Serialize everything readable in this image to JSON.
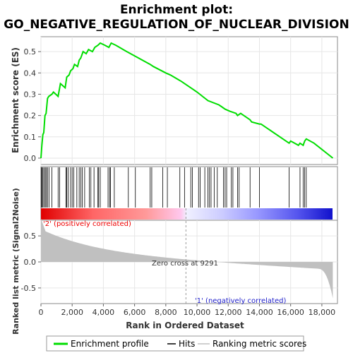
{
  "chart_data": {
    "type": "line",
    "title_line1": "Enrichment plot:",
    "title_line2": "GO_NEGATIVE_REGULATION_OF_NUCLEAR_DIVISION",
    "es_ylabel": "Enrichment score (ES)",
    "metric_ylabel": "Ranked list metric (Signal2Noise)",
    "xlabel": "Rank in Ordered Dataset",
    "xlim": [
      0,
      19000
    ],
    "es_ylim": [
      -0.03,
      0.57
    ],
    "metric_ylim": [
      -0.8,
      0.8
    ],
    "x_ticks": [
      "0",
      "2,000",
      "4,000",
      "6,000",
      "8,000",
      "10,000",
      "12,000",
      "14,000",
      "16,000",
      "18,000"
    ],
    "x_tick_values": [
      0,
      2000,
      4000,
      6000,
      8000,
      10000,
      12000,
      14000,
      16000,
      18000
    ],
    "es_ticks": [
      "0.0",
      "0.1",
      "0.2",
      "0.3",
      "0.4",
      "0.5"
    ],
    "es_tick_values": [
      0.0,
      0.1,
      0.2,
      0.3,
      0.4,
      0.5
    ],
    "metric_ticks": [
      "0.5",
      "0.0",
      "-0.5"
    ],
    "metric_tick_values": [
      0.5,
      0.0,
      -0.5
    ],
    "es_curve": {
      "x": [
        0,
        60,
        120,
        180,
        260,
        330,
        420,
        500,
        700,
        800,
        1100,
        1250,
        1550,
        1650,
        1800,
        1900,
        2050,
        2150,
        2350,
        2450,
        2550,
        2700,
        2900,
        3050,
        3300,
        3450,
        3650,
        3800,
        4100,
        4350,
        4500,
        4800,
        5500,
        6000,
        7000,
        7200,
        8000,
        8300,
        9000,
        10000,
        10700,
        11400,
        11600,
        11800,
        12100,
        12500,
        12600,
        12800,
        13400,
        13500,
        14000,
        14100,
        15900,
        16000,
        16500,
        16600,
        16800,
        16900,
        17000,
        17500,
        18700
      ],
      "y": [
        0.0,
        0.06,
        0.11,
        0.12,
        0.2,
        0.21,
        0.28,
        0.29,
        0.3,
        0.31,
        0.29,
        0.35,
        0.33,
        0.38,
        0.39,
        0.41,
        0.42,
        0.44,
        0.43,
        0.46,
        0.47,
        0.5,
        0.49,
        0.51,
        0.5,
        0.52,
        0.53,
        0.54,
        0.53,
        0.52,
        0.54,
        0.53,
        0.5,
        0.48,
        0.44,
        0.43,
        0.4,
        0.39,
        0.36,
        0.31,
        0.27,
        0.25,
        0.24,
        0.23,
        0.22,
        0.21,
        0.2,
        0.21,
        0.18,
        0.17,
        0.16,
        0.16,
        0.07,
        0.08,
        0.06,
        0.07,
        0.06,
        0.08,
        0.09,
        0.07,
        0.0
      ]
    },
    "hits": [
      30,
      80,
      130,
      200,
      280,
      350,
      420,
      520,
      700,
      1100,
      1200,
      1600,
      1650,
      1750,
      1900,
      2000,
      2100,
      2300,
      2450,
      2550,
      2650,
      2800,
      3100,
      3200,
      3400,
      3650,
      3700,
      3800,
      4300,
      4400,
      4450,
      4700,
      5600,
      6050,
      7000,
      7100,
      7800,
      8100,
      8900,
      9200,
      9600,
      9700,
      10100,
      10200,
      10500,
      10700,
      10800,
      10900,
      11100,
      11300,
      11700,
      11800,
      11900,
      12200,
      12300,
      12600,
      12700,
      13400,
      14000,
      15900,
      16600,
      16800,
      16900,
      17000
    ],
    "zero_cross_label": "Zero cross at 9291",
    "zero_cross": 9291,
    "pos_label": "'2' (positively correlated)",
    "neg_label": "'1' (negatively correlated)",
    "legend": [
      "Enrichment profile",
      "Hits",
      "Ranking metric scores"
    ],
    "colors": {
      "es_line": "#00dd00",
      "hit": "#000000",
      "metric_fill": "#c0c0c0",
      "pos_label": "#ee0000",
      "neg_label": "#2222cc"
    }
  }
}
